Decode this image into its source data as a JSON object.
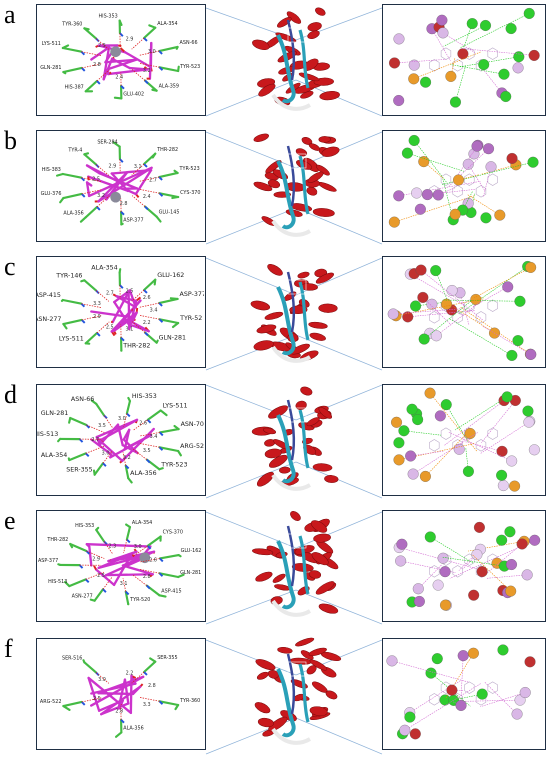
{
  "panels": [
    {
      "letter": "a",
      "residues": [
        "TYR-523",
        "ALA-359",
        "GLU-402",
        "HIS-387",
        "GLN-281",
        "LYS-511",
        "TYR-360",
        "HIS-353",
        "ALA-354",
        "ASN-66"
      ],
      "distances": [
        "3.2",
        "2.4",
        "2.8",
        "2.5",
        "2.9",
        "3.0"
      ]
    },
    {
      "letter": "b",
      "residues": [
        "CYS-370",
        "GLU-145",
        "ASP-377",
        "ALA-356",
        "GLU-376",
        "HIS-383",
        "TYR-4",
        "SER-284",
        "THR-282",
        "TYR-523"
      ],
      "distances": [
        "2.4",
        "2.8",
        "3.2",
        "2.5",
        "2.9",
        "3.1",
        "2.7"
      ]
    },
    {
      "letter": "c",
      "residues": [
        "TYR-52",
        "GLN-281",
        "THR-282",
        "LYS-511",
        "ASN-277",
        "ASP-415",
        "TYR-146",
        "ALA-354",
        "GLU-162",
        "ASP-377"
      ],
      "distances": [
        "2.2",
        "3.1",
        "2.5",
        "2.9",
        "3.3",
        "2.7",
        "2.5",
        "2.6",
        "3.4"
      ]
    },
    {
      "letter": "d",
      "residues": [
        "ARG-522",
        "TYR-523",
        "ALA-356",
        "SER-355",
        "ALA-354",
        "HIS-513",
        "GLN-281",
        "ASN-66",
        "HIS-353",
        "LYS-511",
        "ASN-70"
      ],
      "distances": [
        "3.5",
        "3.2",
        "3.0",
        "2.7",
        "3.5",
        "3.0",
        "2.6",
        "3.4"
      ]
    },
    {
      "letter": "e",
      "residues": [
        "GLN-281",
        "ASP-415",
        "TYR-520",
        "ASN-277",
        "HIS-513",
        "ASP-377",
        "THR-282",
        "HIS-353",
        "ALA-354",
        "CYS-370",
        "GLU-162"
      ],
      "distances": [
        "2.8",
        "3.1",
        "2.5",
        "2.9",
        "2.3",
        "3.0",
        "2.6"
      ]
    },
    {
      "letter": "f",
      "residues": [
        "TYR-360",
        "ALA-356",
        "ARG-522",
        "SER-516",
        "SER-355"
      ],
      "distances": [
        "3.3",
        "2.8",
        "2.5",
        "3.0",
        "2.2",
        "2.8"
      ]
    }
  ],
  "colors": {
    "ligand": "#cc33cc",
    "residue": "#44bb44",
    "helix": "#c8181c",
    "sheet": "#2aa0b8",
    "frame": "#1f2f44",
    "connector": "#8fb3d9",
    "hbond_green": "#22cc22",
    "hbond_orange": "#ee8800"
  }
}
